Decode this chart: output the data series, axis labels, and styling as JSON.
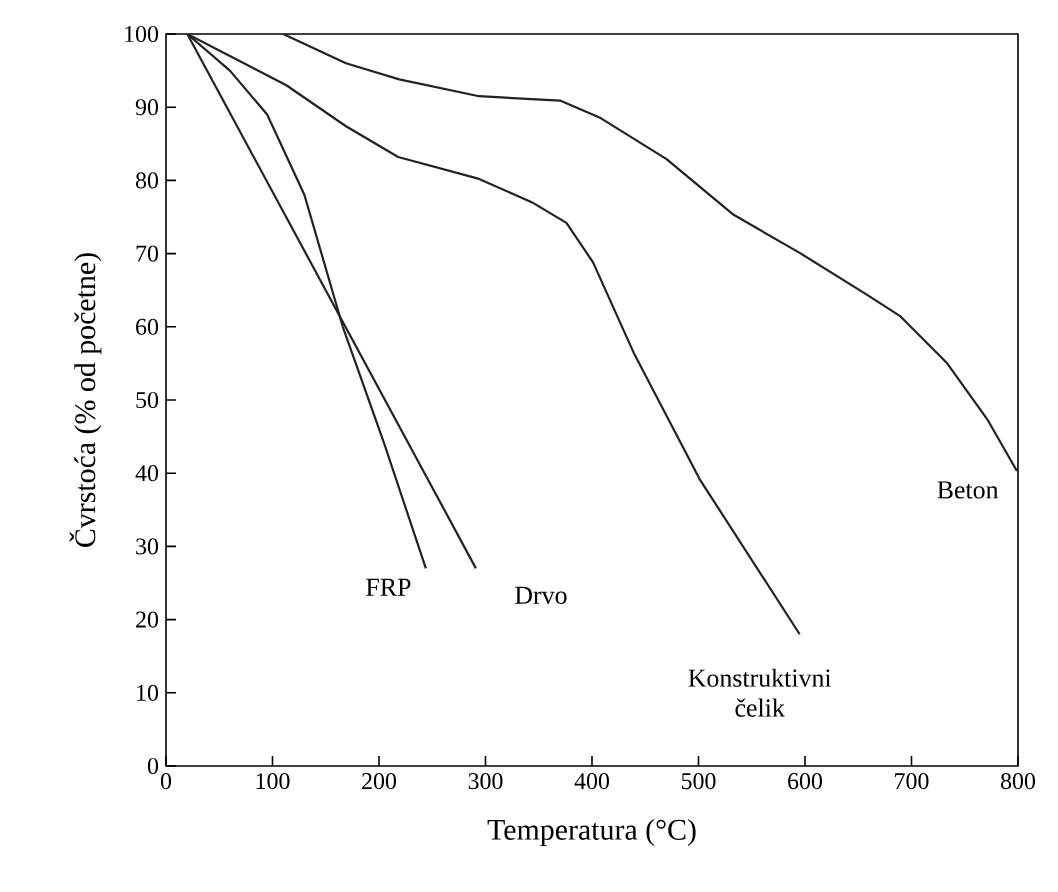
{
  "chart_data": {
    "type": "line",
    "xlabel": "Temperatura (°C)",
    "ylabel": "Čvrstoća (% od početne)",
    "xlim": [
      0,
      800
    ],
    "ylim": [
      0,
      100
    ],
    "xticks": [
      0,
      100,
      200,
      300,
      400,
      500,
      600,
      700,
      800
    ],
    "yticks": [
      0,
      10,
      20,
      30,
      40,
      50,
      60,
      70,
      80,
      90,
      100
    ],
    "grid": false,
    "legend": false,
    "marker": "none",
    "line_style": "solid",
    "series": [
      {
        "name": "FRP",
        "color": "#222222",
        "x": [
          20,
          60,
          95,
          130,
          166,
          205,
          244
        ],
        "values": [
          100,
          95,
          89,
          78,
          60,
          44,
          27
        ]
      },
      {
        "name": "Drvo",
        "color": "#222222",
        "x": [
          20,
          291
        ],
        "values": [
          100,
          27
        ]
      },
      {
        "name": "Konstruktivni čelik",
        "color": "#222222",
        "x": [
          20,
          113,
          169,
          218,
          294,
          345,
          376,
          401,
          439,
          501,
          595
        ],
        "values": [
          100,
          93,
          87.4,
          83.2,
          80.2,
          76.9,
          74.2,
          68.8,
          56.5,
          39.2,
          18
        ]
      },
      {
        "name": "Beton",
        "color": "#222222",
        "x": [
          110,
          169,
          219,
          294,
          370,
          407,
          470,
          533,
          595,
          658,
          689,
          733,
          771,
          799
        ],
        "values": [
          100,
          96,
          93.8,
          91.5,
          90.9,
          88.6,
          82.9,
          75.3,
          70.1,
          64.4,
          61.5,
          55.1,
          47.4,
          40.3
        ]
      }
    ]
  }
}
